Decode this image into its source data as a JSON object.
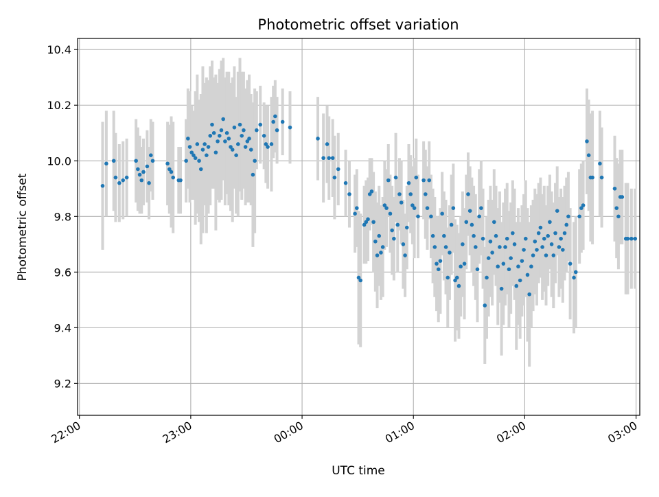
{
  "chart_data": {
    "type": "scatter",
    "title": "Photometric offset variation",
    "xlabel": "UTC time",
    "ylabel": "Photometric offset",
    "x_unit": "minutes relative to 22:00 UTC",
    "xlim": [
      -1,
      302
    ],
    "ylim": [
      9.085,
      10.44
    ],
    "x_ticks": [
      {
        "value": 0,
        "label": "22:00"
      },
      {
        "value": 60,
        "label": "23:00"
      },
      {
        "value": 120,
        "label": "00:00"
      },
      {
        "value": 180,
        "label": "01:00"
      },
      {
        "value": 240,
        "label": "02:00"
      },
      {
        "value": 300,
        "label": "03:00"
      }
    ],
    "y_ticks": [
      9.2,
      9.4,
      9.6,
      9.8,
      10.0,
      10.2,
      10.4
    ],
    "grid": true,
    "point_color": "#1f77b4",
    "errorbar_color": "#d3d3d3",
    "series": [
      {
        "points": [
          [
            12.5,
            9.91,
            0.23
          ],
          [
            14.5,
            9.99,
            0.19
          ],
          [
            18.5,
            10.0,
            0.18
          ],
          [
            19.5,
            9.94,
            0.16
          ],
          [
            21.5,
            9.92,
            0.14
          ],
          [
            23.5,
            9.93,
            0.14
          ],
          [
            25.5,
            9.94,
            0.14
          ],
          [
            30.5,
            10.0,
            0.15
          ],
          [
            31.5,
            9.97,
            0.15
          ],
          [
            32.5,
            9.95,
            0.14
          ],
          [
            33.5,
            9.93,
            0.12
          ],
          [
            34.5,
            9.96,
            0.12
          ],
          [
            36.5,
            9.98,
            0.13
          ],
          [
            37.5,
            9.92,
            0.13
          ],
          [
            38.5,
            10.02,
            0.13
          ],
          [
            39.5,
            10.0,
            0.14
          ],
          [
            47.5,
            9.99,
            0.15
          ],
          [
            48.5,
            9.97,
            0.16
          ],
          [
            49.5,
            9.96,
            0.2
          ],
          [
            50.5,
            9.94,
            0.2
          ],
          [
            53.5,
            9.93,
            0.12
          ],
          [
            54.5,
            9.93,
            0.12
          ],
          [
            57.5,
            10.0,
            0.15
          ],
          [
            58.5,
            10.08,
            0.18
          ],
          [
            59.5,
            10.05,
            0.2
          ],
          [
            60.5,
            10.03,
            0.17
          ],
          [
            61.5,
            10.02,
            0.16
          ],
          [
            62.5,
            10.01,
            0.24
          ],
          [
            63.5,
            10.06,
            0.25
          ],
          [
            64.5,
            10.0,
            0.22
          ],
          [
            65.5,
            9.97,
            0.27
          ],
          [
            66.5,
            10.04,
            0.3
          ],
          [
            67.5,
            10.06,
            0.22
          ],
          [
            68.5,
            10.02,
            0.28
          ],
          [
            69.5,
            10.05,
            0.24
          ],
          [
            70.5,
            10.09,
            0.25
          ],
          [
            71.5,
            10.13,
            0.23
          ],
          [
            72.5,
            10.1,
            0.2
          ],
          [
            73.5,
            10.03,
            0.28
          ],
          [
            74.5,
            10.07,
            0.21
          ],
          [
            75.5,
            10.09,
            0.24
          ],
          [
            76.5,
            10.11,
            0.25
          ],
          [
            77.5,
            10.15,
            0.22
          ],
          [
            78.5,
            10.07,
            0.23
          ],
          [
            79.5,
            10.1,
            0.22
          ],
          [
            80.5,
            10.08,
            0.24
          ],
          [
            81.5,
            10.05,
            0.23
          ],
          [
            82.5,
            10.04,
            0.26
          ],
          [
            83.5,
            10.12,
            0.22
          ],
          [
            84.5,
            10.02,
            0.21
          ],
          [
            85.5,
            10.06,
            0.26
          ],
          [
            86.5,
            10.13,
            0.24
          ],
          [
            87.5,
            10.09,
            0.23
          ],
          [
            88.5,
            10.11,
            0.21
          ],
          [
            89.5,
            10.05,
            0.21
          ],
          [
            90.5,
            10.07,
            0.22
          ],
          [
            91.5,
            10.08,
            0.23
          ],
          [
            92.5,
            10.04,
            0.2
          ],
          [
            93.5,
            9.95,
            0.26
          ],
          [
            94.5,
            10.0,
            0.26
          ],
          [
            95.5,
            10.11,
            0.14
          ],
          [
            97.5,
            10.13,
            0.14
          ],
          [
            99.5,
            10.09,
            0.12
          ],
          [
            100.5,
            10.06,
            0.14
          ],
          [
            101.5,
            10.05,
            0.15
          ],
          [
            103.5,
            10.06,
            0.17
          ],
          [
            104.5,
            10.14,
            0.13
          ],
          [
            105.5,
            10.16,
            0.13
          ],
          [
            106.5,
            10.11,
            0.12
          ],
          [
            109.5,
            10.14,
            0.12
          ],
          [
            113.5,
            10.12,
            0.13
          ],
          [
            128.5,
            10.08,
            0.15
          ],
          [
            131.5,
            10.01,
            0.16
          ],
          [
            133.5,
            10.06,
            0.14
          ],
          [
            134.5,
            10.01,
            0.15
          ],
          [
            136.5,
            10.01,
            0.14
          ],
          [
            137.5,
            9.94,
            0.15
          ],
          [
            139.5,
            9.97,
            0.13
          ],
          [
            143.5,
            9.92,
            0.12
          ],
          [
            145.5,
            9.88,
            0.12
          ],
          [
            148.5,
            9.81,
            0.14
          ],
          [
            149.5,
            9.83,
            0.14
          ],
          [
            150.5,
            9.58,
            0.24
          ],
          [
            151.5,
            9.57,
            0.24
          ],
          [
            153.5,
            9.77,
            0.14
          ],
          [
            154.5,
            9.78,
            0.15
          ],
          [
            155.5,
            9.79,
            0.15
          ],
          [
            156.5,
            9.88,
            0.13
          ],
          [
            157.5,
            9.89,
            0.12
          ],
          [
            158.5,
            9.78,
            0.18
          ],
          [
            159.5,
            9.71,
            0.18
          ],
          [
            160.5,
            9.66,
            0.19
          ],
          [
            161.5,
            9.73,
            0.18
          ],
          [
            162.5,
            9.67,
            0.17
          ],
          [
            163.5,
            9.69,
            0.18
          ],
          [
            164.5,
            9.84,
            0.16
          ],
          [
            165.5,
            9.83,
            0.14
          ],
          [
            166.5,
            9.93,
            0.13
          ],
          [
            167.5,
            9.81,
            0.14
          ],
          [
            168.5,
            9.75,
            0.16
          ],
          [
            169.5,
            9.72,
            0.15
          ],
          [
            170.5,
            9.94,
            0.16
          ],
          [
            171.5,
            9.77,
            0.17
          ],
          [
            172.5,
            9.88,
            0.13
          ],
          [
            173.5,
            9.85,
            0.15
          ],
          [
            174.5,
            9.7,
            0.16
          ],
          [
            175.5,
            9.66,
            0.15
          ],
          [
            176.5,
            9.76,
            0.15
          ],
          [
            177.5,
            9.92,
            0.14
          ],
          [
            178.5,
            9.88,
            0.14
          ],
          [
            179.5,
            9.84,
            0.14
          ],
          [
            180.5,
            9.83,
            0.18
          ],
          [
            181.5,
            9.94,
            0.14
          ],
          [
            182.5,
            9.8,
            0.15
          ],
          [
            185.5,
            9.93,
            0.14
          ],
          [
            186.5,
            9.88,
            0.16
          ],
          [
            187.5,
            9.83,
            0.15
          ],
          [
            188.5,
            9.93,
            0.14
          ],
          [
            189.5,
            9.8,
            0.15
          ],
          [
            190.5,
            9.73,
            0.17
          ],
          [
            191.5,
            9.69,
            0.18
          ],
          [
            192.5,
            9.63,
            0.17
          ],
          [
            193.5,
            9.61,
            0.19
          ],
          [
            194.5,
            9.64,
            0.19
          ],
          [
            195.5,
            9.81,
            0.15
          ],
          [
            196.5,
            9.73,
            0.16
          ],
          [
            197.5,
            9.69,
            0.17
          ],
          [
            198.5,
            9.58,
            0.18
          ],
          [
            199.5,
            9.67,
            0.17
          ],
          [
            200.5,
            9.77,
            0.18
          ],
          [
            201.5,
            9.83,
            0.16
          ],
          [
            202.5,
            9.57,
            0.22
          ],
          [
            203.5,
            9.58,
            0.19
          ],
          [
            204.5,
            9.55,
            0.19
          ],
          [
            205.5,
            9.62,
            0.18
          ],
          [
            206.5,
            9.7,
            0.19
          ],
          [
            207.5,
            9.63,
            0.2
          ],
          [
            208.5,
            9.78,
            0.17
          ],
          [
            209.5,
            9.88,
            0.15
          ],
          [
            210.5,
            9.82,
            0.16
          ],
          [
            211.5,
            9.77,
            0.17
          ],
          [
            212.5,
            9.73,
            0.18
          ],
          [
            213.5,
            9.69,
            0.19
          ],
          [
            214.5,
            9.61,
            0.19
          ],
          [
            215.5,
            9.8,
            0.17
          ],
          [
            216.5,
            9.83,
            0.17
          ],
          [
            217.5,
            9.72,
            0.18
          ],
          [
            218.5,
            9.48,
            0.21
          ],
          [
            219.5,
            9.58,
            0.22
          ],
          [
            220.5,
            9.65,
            0.21
          ],
          [
            221.5,
            9.71,
            0.2
          ],
          [
            222.5,
            9.67,
            0.19
          ],
          [
            223.5,
            9.78,
            0.19
          ],
          [
            224.5,
            9.73,
            0.18
          ],
          [
            225.5,
            9.62,
            0.21
          ],
          [
            226.5,
            9.69,
            0.2
          ],
          [
            227.5,
            9.54,
            0.24
          ],
          [
            228.5,
            9.63,
            0.22
          ],
          [
            229.5,
            9.69,
            0.21
          ],
          [
            230.5,
            9.72,
            0.2
          ],
          [
            231.5,
            9.61,
            0.21
          ],
          [
            232.5,
            9.65,
            0.2
          ],
          [
            233.5,
            9.74,
            0.19
          ],
          [
            234.5,
            9.7,
            0.2
          ],
          [
            235.5,
            9.55,
            0.23
          ],
          [
            236.5,
            9.62,
            0.21
          ],
          [
            237.5,
            9.57,
            0.21
          ],
          [
            238.5,
            9.64,
            0.2
          ],
          [
            239.5,
            9.68,
            0.2
          ],
          [
            240.5,
            9.72,
            0.21
          ],
          [
            241.5,
            9.59,
            0.24
          ],
          [
            242.5,
            9.52,
            0.26
          ],
          [
            243.5,
            9.62,
            0.22
          ],
          [
            244.5,
            9.66,
            0.2
          ],
          [
            245.5,
            9.71,
            0.19
          ],
          [
            246.5,
            9.68,
            0.2
          ],
          [
            247.5,
            9.74,
            0.18
          ],
          [
            248.5,
            9.76,
            0.18
          ],
          [
            249.5,
            9.69,
            0.19
          ],
          [
            250.5,
            9.72,
            0.19
          ],
          [
            251.5,
            9.66,
            0.18
          ],
          [
            252.5,
            9.73,
            0.18
          ],
          [
            253.5,
            9.78,
            0.17
          ],
          [
            254.5,
            9.7,
            0.19
          ],
          [
            255.5,
            9.66,
            0.19
          ],
          [
            256.5,
            9.74,
            0.18
          ],
          [
            257.5,
            9.82,
            0.16
          ],
          [
            258.5,
            9.69,
            0.18
          ],
          [
            259.5,
            9.72,
            0.18
          ],
          [
            260.5,
            9.68,
            0.19
          ],
          [
            261.5,
            9.74,
            0.17
          ],
          [
            262.5,
            9.77,
            0.17
          ],
          [
            263.5,
            9.8,
            0.16
          ],
          [
            264.5,
            9.63,
            0.2
          ],
          [
            266.5,
            9.58,
            0.2
          ],
          [
            267.5,
            9.6,
            0.2
          ],
          [
            269.5,
            9.8,
            0.17
          ],
          [
            270.5,
            9.83,
            0.16
          ],
          [
            271.5,
            9.84,
            0.16
          ],
          [
            273.5,
            10.07,
            0.19
          ],
          [
            274.5,
            10.02,
            0.2
          ],
          [
            275.5,
            9.94,
            0.23
          ],
          [
            276.5,
            9.94,
            0.24
          ],
          [
            280.5,
            9.99,
            0.19
          ],
          [
            281.5,
            9.94,
            0.18
          ],
          [
            288.5,
            9.9,
            0.19
          ],
          [
            289.5,
            9.83,
            0.18
          ],
          [
            290.5,
            9.8,
            0.19
          ],
          [
            291.5,
            9.87,
            0.17
          ],
          [
            292.5,
            9.87,
            0.17
          ],
          [
            294.5,
            9.72,
            0.2
          ],
          [
            295.5,
            9.72,
            0.2
          ],
          [
            297.5,
            9.72,
            0.18
          ],
          [
            299.5,
            9.72,
            0.18
          ]
        ]
      }
    ]
  }
}
